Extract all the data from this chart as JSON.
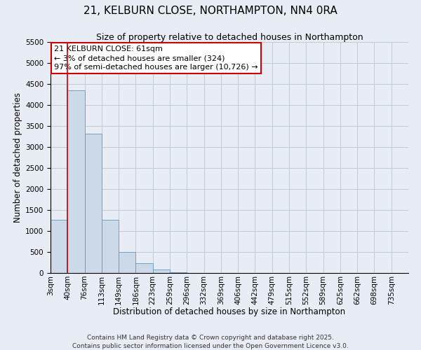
{
  "title": "21, KELBURN CLOSE, NORTHAMPTON, NN4 0RA",
  "subtitle": "Size of property relative to detached houses in Northampton",
  "xlabel": "Distribution of detached houses by size in Northampton",
  "ylabel": "Number of detached properties",
  "bar_values": [
    1270,
    4350,
    3320,
    1270,
    500,
    240,
    80,
    20,
    5,
    2,
    0,
    0,
    0,
    0,
    0,
    0,
    0,
    0,
    0,
    0,
    0
  ],
  "bar_labels": [
    "3sqm",
    "40sqm",
    "76sqm",
    "113sqm",
    "149sqm",
    "186sqm",
    "223sqm",
    "259sqm",
    "296sqm",
    "332sqm",
    "369sqm",
    "406sqm",
    "442sqm",
    "479sqm",
    "515sqm",
    "552sqm",
    "589sqm",
    "625sqm",
    "662sqm",
    "698sqm",
    "735sqm"
  ],
  "bar_color": "#ccd9e8",
  "bar_edge_color": "#6699bb",
  "bar_width": 1.0,
  "vline_x_index": 1,
  "vline_color": "#cc0000",
  "grid_color": "#c0cad8",
  "background_color": "#e8ecf4",
  "ylim": [
    0,
    5500
  ],
  "yticks": [
    0,
    500,
    1000,
    1500,
    2000,
    2500,
    3000,
    3500,
    4000,
    4500,
    5000,
    5500
  ],
  "annotation_title": "21 KELBURN CLOSE: 61sqm",
  "annotation_line1": "← 3% of detached houses are smaller (324)",
  "annotation_line2": "97% of semi-detached houses are larger (10,726) →",
  "annotation_box_color": "#ffffff",
  "annotation_box_edge": "#cc0000",
  "footer1": "Contains HM Land Registry data © Crown copyright and database right 2025.",
  "footer2": "Contains public sector information licensed under the Open Government Licence v3.0.",
  "title_fontsize": 11,
  "subtitle_fontsize": 9,
  "axis_label_fontsize": 8.5,
  "tick_fontsize": 7.5,
  "annotation_title_fontsize": 8.5,
  "annotation_body_fontsize": 8,
  "footer_fontsize": 6.5
}
